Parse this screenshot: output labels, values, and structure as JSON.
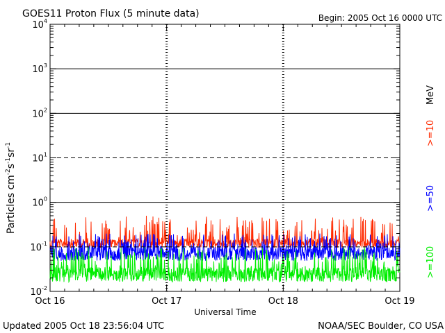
{
  "header": {
    "title": "GOES11 Proton Flux (5 minute data)",
    "begin": "Begin: 2005 Oct 16 0000 UTC"
  },
  "footer": {
    "updated": "Updated 2005 Oct 18 23:56:04 UTC",
    "credit": "NOAA/SEC Boulder, CO USA"
  },
  "chart_data": {
    "type": "line",
    "title": "GOES11 Proton Flux (5 minute data)",
    "xlabel": "Universal Time",
    "ylabel": "Particles cm-2s-1sr-1",
    "ylabel_parts": {
      "base": "Particles cm",
      "e1": "-2",
      "mid1": "s",
      "e2": "-1",
      "mid2": "sr",
      "e3": "-1"
    },
    "yscale": "log",
    "ylim": [
      0.01,
      10000
    ],
    "xlim_days": [
      0,
      3
    ],
    "x_ticks": [
      "Oct 16",
      "Oct 17",
      "Oct 18",
      "Oct 19"
    ],
    "y_ticks": [
      {
        "base": "10",
        "exp": "-2",
        "value": 0.01
      },
      {
        "base": "10",
        "exp": "-1",
        "value": 0.1
      },
      {
        "base": "10",
        "exp": "0",
        "value": 1
      },
      {
        "base": "10",
        "exp": "1",
        "value": 10
      },
      {
        "base": "10",
        "exp": "2",
        "value": 100
      },
      {
        "base": "10",
        "exp": "3",
        "value": 1000
      },
      {
        "base": "10",
        "exp": "4",
        "value": 10000
      }
    ],
    "energy_unit": "MeV",
    "series": [
      {
        "name": ">=10",
        "color": "#ff2a00",
        "baseline": 0.15,
        "min": 0.09,
        "max": 0.5
      },
      {
        "name": ">=50",
        "color": "#0000ff",
        "baseline": 0.1,
        "min": 0.045,
        "max": 0.2
      },
      {
        "name": ">=100",
        "color": "#00ee00",
        "baseline": 0.035,
        "min": 0.015,
        "max": 0.1
      }
    ],
    "thresholds": [
      {
        "value": 10,
        "style": "dashed"
      },
      {
        "value": 0.1,
        "style": "dashed"
      }
    ]
  }
}
